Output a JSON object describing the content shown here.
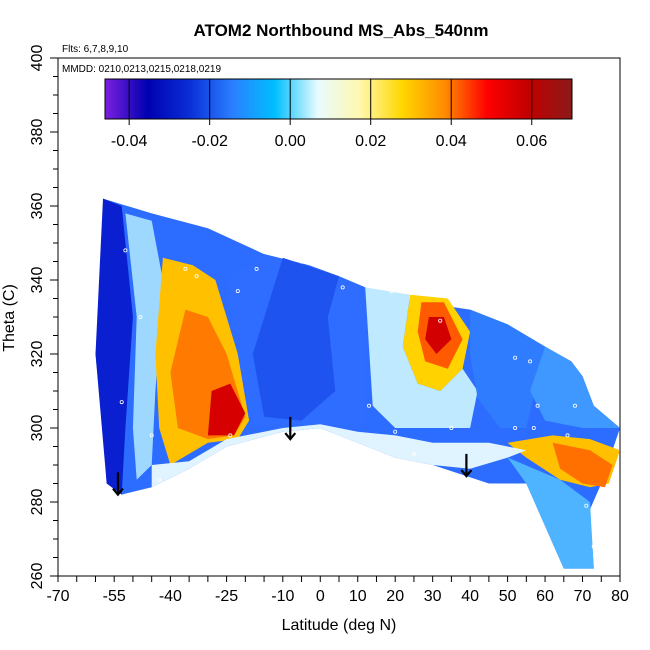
{
  "chart_data": {
    "type": "heatmap",
    "title": "ATOM2 Northbound MS_Abs_540nm",
    "xlabel": "Latitude (deg N)",
    "ylabel": "Theta (C)",
    "xlim": [
      -70,
      80
    ],
    "ylim": [
      260,
      400
    ],
    "x_ticks": [
      -70,
      -55,
      -40,
      -25,
      -10,
      0,
      10,
      20,
      30,
      40,
      50,
      60,
      70,
      80
    ],
    "y_ticks": [
      260,
      280,
      300,
      320,
      340,
      360,
      380,
      400
    ],
    "annotations": [
      "Flts: 6,7,8,9,10",
      "MMDD: 0210,0213,0215,0218,0219"
    ],
    "colorbar": {
      "min": -0.046,
      "max": 0.07,
      "ticks": [
        -0.04,
        -0.02,
        0.0,
        0.02,
        0.04,
        0.06
      ],
      "tick_labels": [
        "-0.04",
        "-0.02",
        "0.00",
        "0.02",
        "0.04",
        "0.06"
      ],
      "colors": [
        "#7b20e0",
        "#0000b0",
        "#0a2fd8",
        "#2a7fff",
        "#00bfff",
        "#e8fbff",
        "#fff8b0",
        "#ffd700",
        "#ff8c00",
        "#ff0000",
        "#c00000",
        "#8b1a1a"
      ]
    },
    "arrows_latitude": [
      -54,
      -8,
      39
    ],
    "sample_points": [
      {
        "lat": -52,
        "theta": 348
      },
      {
        "lat": -48,
        "theta": 330
      },
      {
        "lat": -53,
        "theta": 307
      },
      {
        "lat": -45,
        "theta": 298
      },
      {
        "lat": -43,
        "theta": 286
      },
      {
        "lat": -36,
        "theta": 343
      },
      {
        "lat": -33,
        "theta": 341
      },
      {
        "lat": -22,
        "theta": 337
      },
      {
        "lat": -17,
        "theta": 343
      },
      {
        "lat": -5,
        "theta": 345
      },
      {
        "lat": 6,
        "theta": 338
      },
      {
        "lat": 12,
        "theta": 340
      },
      {
        "lat": 13,
        "theta": 306
      },
      {
        "lat": 19,
        "theta": 337
      },
      {
        "lat": 20,
        "theta": 299
      },
      {
        "lat": 32,
        "theta": 329
      },
      {
        "lat": 35,
        "theta": 300
      },
      {
        "lat": 25,
        "theta": 293
      },
      {
        "lat": 52,
        "theta": 319
      },
      {
        "lat": 56,
        "theta": 318
      },
      {
        "lat": 58,
        "theta": 306
      },
      {
        "lat": 57,
        "theta": 300
      },
      {
        "lat": 68,
        "theta": 306
      },
      {
        "lat": 66,
        "theta": 298
      },
      {
        "lat": 71,
        "theta": 279
      },
      {
        "lat": 73,
        "theta": 268
      },
      {
        "lat": -24,
        "theta": 298
      },
      {
        "lat": 52,
        "theta": 300
      }
    ]
  }
}
